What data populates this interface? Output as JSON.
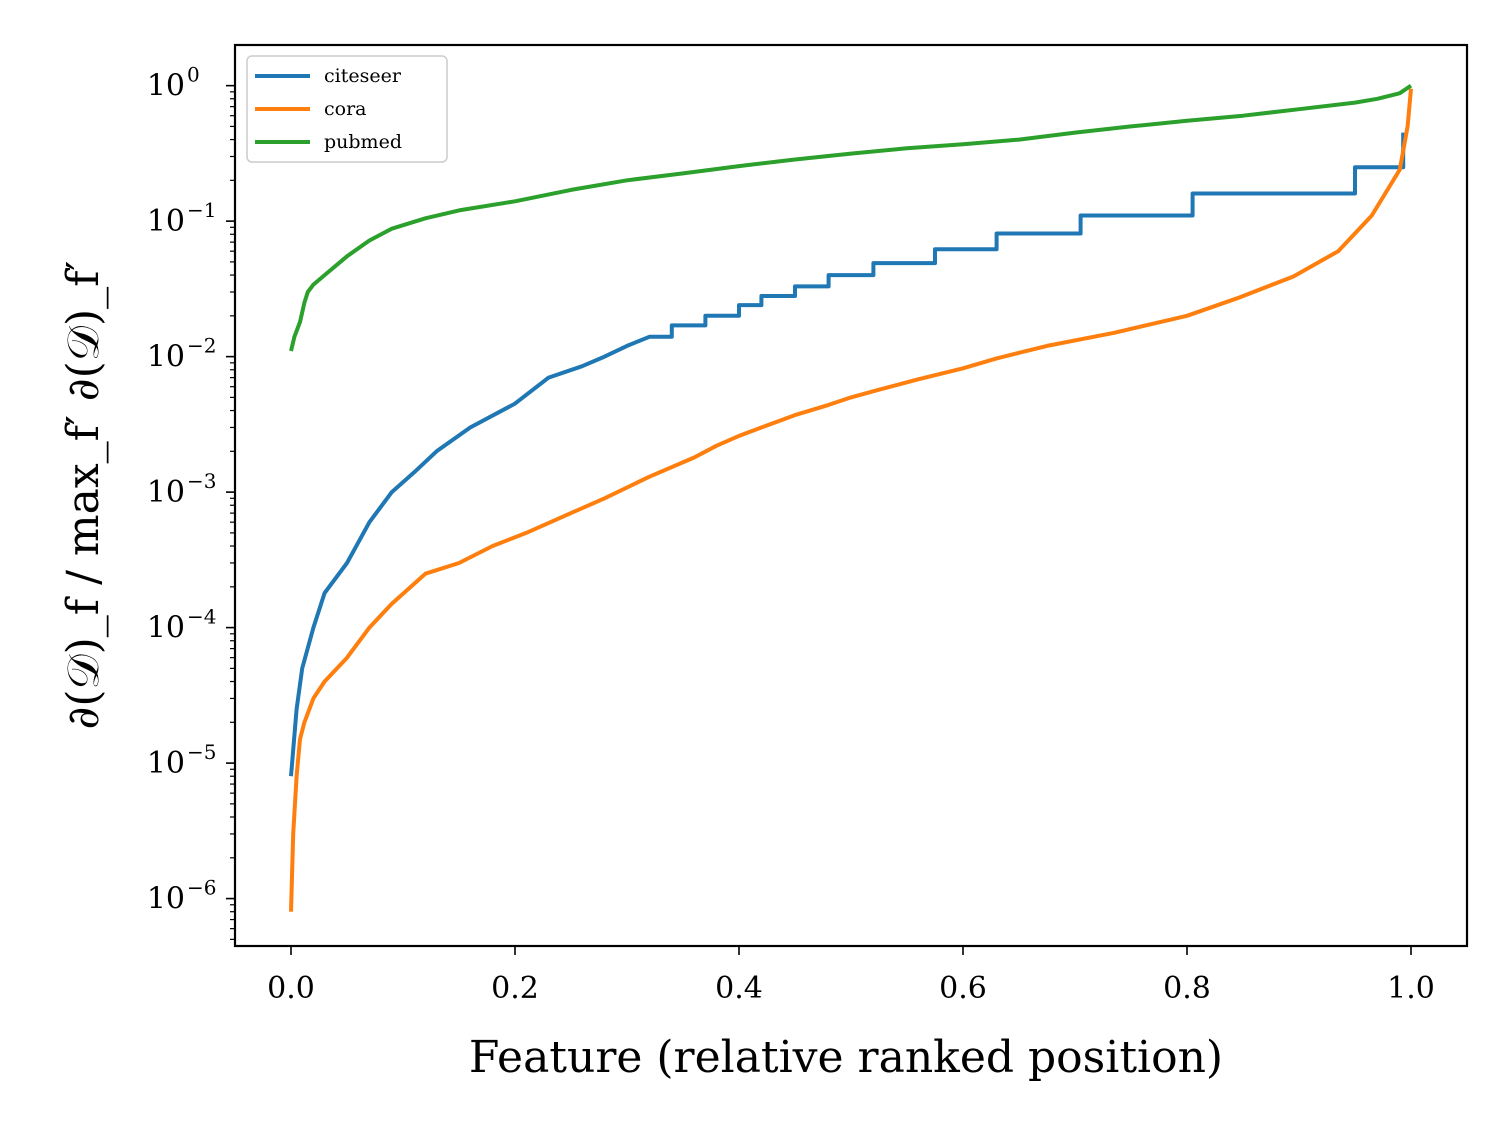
{
  "chart_data": {
    "type": "line",
    "title": "",
    "xlabel": "Feature (relative ranked position)",
    "ylabel": "∂(𝒟)_f / max_f′ ∂(𝒟)_f′",
    "xscale": "linear",
    "yscale": "log",
    "xlim": [
      -0.05,
      1.05
    ],
    "ylim_exponent": [
      -6.35,
      0.3
    ],
    "x_ticks": [
      "0.0",
      "0.2",
      "0.4",
      "0.6",
      "0.8",
      "1.0"
    ],
    "x_tick_values": [
      0.0,
      0.2,
      0.4,
      0.6,
      0.8,
      1.0
    ],
    "y_ticks": [
      {
        "base": "10",
        "exp": "0",
        "value": 0
      },
      {
        "base": "10",
        "exp": "−1",
        "value": -1
      },
      {
        "base": "10",
        "exp": "−2",
        "value": -2
      },
      {
        "base": "10",
        "exp": "−3",
        "value": -3
      },
      {
        "base": "10",
        "exp": "−4",
        "value": -4
      },
      {
        "base": "10",
        "exp": "−5",
        "value": -5
      },
      {
        "base": "10",
        "exp": "−6",
        "value": -6
      }
    ],
    "legend_position": "upper left",
    "series": [
      {
        "name": "citeseer",
        "color": "#1f77b4",
        "x": [
          0.0,
          0.005,
          0.01,
          0.02,
          0.03,
          0.05,
          0.07,
          0.09,
          0.11,
          0.13,
          0.16,
          0.2,
          0.23,
          0.26,
          0.28,
          0.3,
          0.32,
          0.34,
          0.34,
          0.37,
          0.37,
          0.4,
          0.4,
          0.42,
          0.42,
          0.45,
          0.45,
          0.48,
          0.48,
          0.52,
          0.52,
          0.575,
          0.575,
          0.63,
          0.63,
          0.705,
          0.705,
          0.805,
          0.805,
          0.95,
          0.95,
          0.993,
          0.993
        ],
        "y": [
          8e-06,
          2.5e-05,
          5e-05,
          0.0001,
          0.00018,
          0.0003,
          0.0006,
          0.001,
          0.0014,
          0.002,
          0.003,
          0.0045,
          0.007,
          0.0085,
          0.01,
          0.012,
          0.014,
          0.014,
          0.017,
          0.017,
          0.02,
          0.02,
          0.024,
          0.024,
          0.028,
          0.028,
          0.033,
          0.033,
          0.04,
          0.04,
          0.049,
          0.049,
          0.062,
          0.062,
          0.081,
          0.081,
          0.11,
          0.11,
          0.16,
          0.16,
          0.25,
          0.25,
          0.45
        ]
      },
      {
        "name": "cora",
        "color": "#ff7f0e",
        "x": [
          0.0,
          0.002,
          0.005,
          0.008,
          0.012,
          0.02,
          0.03,
          0.05,
          0.07,
          0.09,
          0.12,
          0.15,
          0.18,
          0.21,
          0.25,
          0.28,
          0.32,
          0.36,
          0.38,
          0.4,
          0.42,
          0.42,
          0.45,
          0.45,
          0.48,
          0.48,
          0.5,
          0.5,
          0.525,
          0.525,
          0.56,
          0.56,
          0.6,
          0.6,
          0.63,
          0.63,
          0.675,
          0.675,
          0.735,
          0.735,
          0.8,
          0.8,
          0.845,
          0.845,
          0.895,
          0.895,
          0.935,
          0.935,
          0.965,
          0.965,
          0.99,
          0.99,
          0.997,
          1.0
        ],
        "y": [
          8e-07,
          3e-06,
          8e-06,
          1.5e-05,
          2e-05,
          3e-05,
          4e-05,
          6e-05,
          0.0001,
          0.00015,
          0.00025,
          0.0003,
          0.0004,
          0.0005,
          0.0007,
          0.0009,
          0.0013,
          0.0018,
          0.0022,
          0.0026,
          0.003,
          0.003,
          0.0037,
          0.0037,
          0.0044,
          0.0044,
          0.005,
          0.005,
          0.0057,
          0.0057,
          0.0068,
          0.0068,
          0.0082,
          0.0082,
          0.0097,
          0.0097,
          0.012,
          0.012,
          0.015,
          0.015,
          0.02,
          0.02,
          0.027,
          0.027,
          0.039,
          0.039,
          0.06,
          0.06,
          0.11,
          0.11,
          0.24,
          0.24,
          0.5,
          0.95
        ]
      },
      {
        "name": "pubmed",
        "color": "#2ca02c",
        "x": [
          0.0,
          0.003,
          0.008,
          0.012,
          0.015,
          0.02,
          0.03,
          0.05,
          0.07,
          0.09,
          0.12,
          0.15,
          0.2,
          0.25,
          0.3,
          0.35,
          0.4,
          0.45,
          0.5,
          0.55,
          0.6,
          0.65,
          0.7,
          0.75,
          0.8,
          0.85,
          0.9,
          0.95,
          0.97,
          0.99,
          1.0
        ],
        "y": [
          0.011,
          0.014,
          0.018,
          0.025,
          0.03,
          0.034,
          0.04,
          0.055,
          0.072,
          0.088,
          0.105,
          0.12,
          0.14,
          0.17,
          0.2,
          0.225,
          0.255,
          0.285,
          0.315,
          0.345,
          0.37,
          0.4,
          0.45,
          0.5,
          0.55,
          0.6,
          0.67,
          0.75,
          0.8,
          0.88,
          1.0
        ]
      }
    ]
  }
}
